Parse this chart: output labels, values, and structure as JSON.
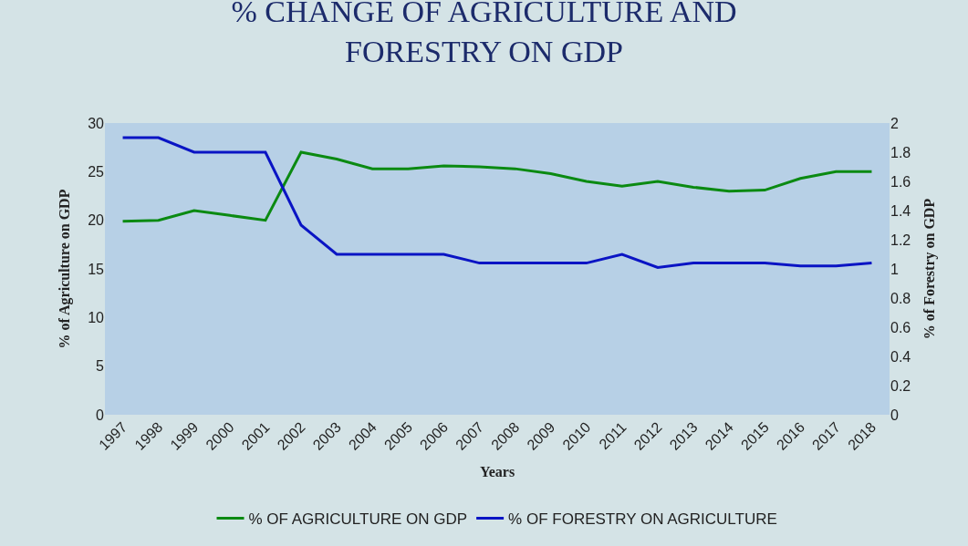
{
  "chart_data": {
    "type": "line",
    "title": "% CHANGE OF AGRICULTURE AND\nFORESTRY ON GDP",
    "xlabel": "Years",
    "ylabel": "% of Agriculture on GDP",
    "y2label": "% of Forestry on GDP",
    "categories": [
      "1997",
      "1998",
      "1999",
      "2000",
      "2001",
      "2002",
      "2003",
      "2004",
      "2005",
      "2006",
      "2007",
      "2008",
      "2009",
      "2010",
      "2011",
      "2012",
      "2013",
      "2014",
      "2015",
      "2016",
      "2017",
      "2018"
    ],
    "series": [
      {
        "name": "% OF AGRICULTURE ON GDP",
        "color": "#0b8a12",
        "values": [
          19.9,
          20.0,
          21.0,
          20.5,
          20.0,
          27.0,
          26.3,
          25.3,
          25.3,
          25.6,
          25.5,
          25.3,
          24.8,
          24.0,
          23.5,
          24.0,
          23.4,
          23.0,
          23.1,
          24.3,
          25.0,
          25.0
        ]
      },
      {
        "name": "% OF FORESTRY ON AGRICULTURE",
        "color": "#0a14c4",
        "axis": "y2",
        "values": [
          1.9,
          1.9,
          1.8,
          1.8,
          1.8,
          1.3,
          1.1,
          1.1,
          1.1,
          1.1,
          1.04,
          1.04,
          1.04,
          1.04,
          1.1,
          1.01,
          1.04,
          1.04,
          1.04,
          1.02,
          1.02,
          1.04
        ]
      }
    ],
    "ylim": [
      0,
      30
    ],
    "yticks": [
      0,
      5,
      10,
      15,
      20,
      25,
      30
    ],
    "y2lim": [
      0,
      2
    ],
    "y2ticks": [
      0,
      0.2,
      0.4,
      0.6,
      0.8,
      1,
      1.2,
      1.4,
      1.6,
      1.8,
      2
    ],
    "legend": "bottom",
    "grid": false,
    "marker": "none",
    "line_style": "solid"
  }
}
